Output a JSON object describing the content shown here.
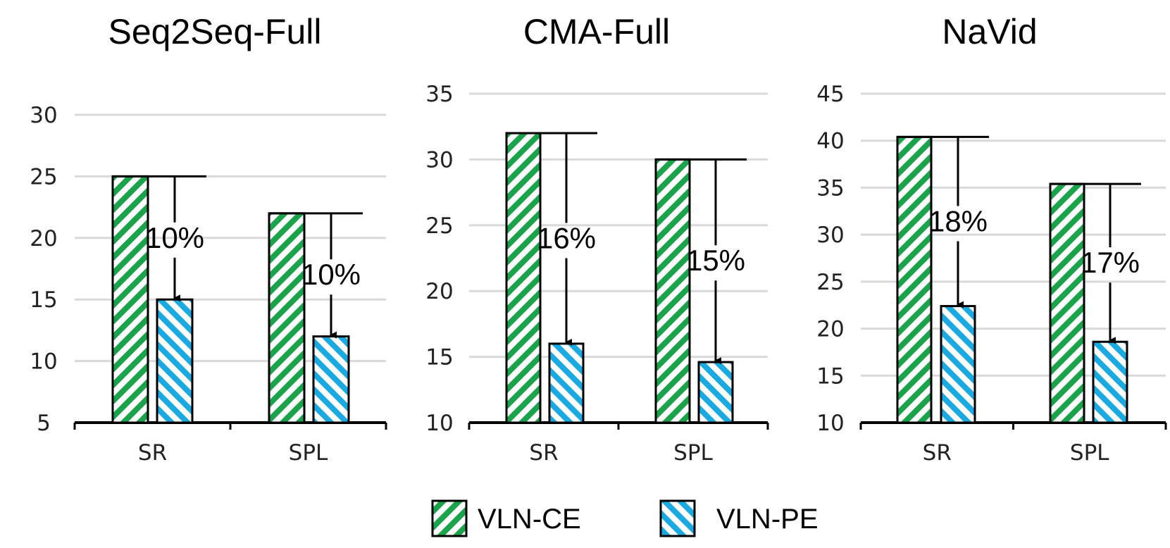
{
  "chart_data": [
    {
      "type": "bar",
      "title": "Seq2Seq-Full",
      "categories": [
        "SR",
        "SPL"
      ],
      "series": [
        {
          "name": "VLN-CE",
          "values": [
            25,
            22
          ]
        },
        {
          "name": "VLN-PE",
          "values": [
            15,
            12
          ]
        }
      ],
      "drops": [
        "10%",
        "10%"
      ],
      "ylim": [
        5,
        30
      ],
      "yticks": [
        5,
        10,
        15,
        20,
        25,
        30
      ],
      "grid": true
    },
    {
      "type": "bar",
      "title": "CMA-Full",
      "categories": [
        "SR",
        "SPL"
      ],
      "series": [
        {
          "name": "VLN-CE",
          "values": [
            32,
            30
          ]
        },
        {
          "name": "VLN-PE",
          "values": [
            16,
            14.6
          ]
        }
      ],
      "drops": [
        "16%",
        "15%"
      ],
      "ylim": [
        10,
        35
      ],
      "yticks": [
        10,
        15,
        20,
        25,
        30,
        35
      ],
      "grid": true
    },
    {
      "type": "bar",
      "title": "NaVid",
      "categories": [
        "SR",
        "SPL"
      ],
      "series": [
        {
          "name": "VLN-CE",
          "values": [
            40.4,
            35.4
          ]
        },
        {
          "name": "VLN-PE",
          "values": [
            22.4,
            18.6
          ]
        }
      ],
      "drops": [
        "18%",
        "17%"
      ],
      "ylim": [
        10,
        45
      ],
      "yticks": [
        10,
        15,
        20,
        25,
        30,
        35,
        40,
        45
      ],
      "grid": true
    }
  ],
  "legend": {
    "placement": "bottom",
    "items": [
      {
        "label": "VLN-CE",
        "color": "#1aa34a",
        "pattern": "diagonal-up"
      },
      {
        "label": "VLN-PE",
        "color": "#1aa9e0",
        "pattern": "diagonal-down"
      }
    ]
  },
  "colors": {
    "grid": "#d9d9d9",
    "axis": "#000000",
    "ce": "#1aa34a",
    "pe": "#1aa9e0"
  }
}
